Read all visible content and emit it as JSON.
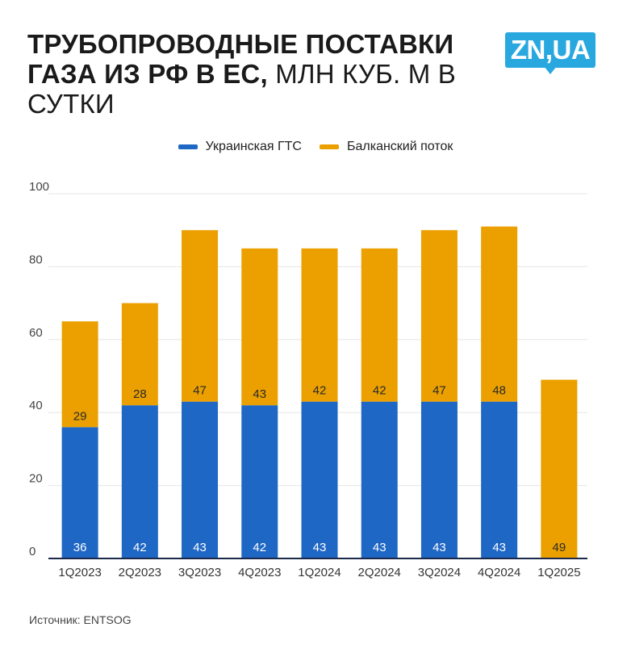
{
  "header": {
    "title_bold": "ТРУБОПРОВОДНЫЕ ПОСТАВКИ ГАЗА ИЗ РФ В ЕС,",
    "title_light": " МЛН КУБ. М В СУТКИ",
    "logo_text": "ZN,UA"
  },
  "colors": {
    "ukraine": "#1f67c4",
    "balkan": "#eba000",
    "grid": "#e6e6e6",
    "axis": "#1b2a4a",
    "logo": "#29a8e0"
  },
  "chart_data": {
    "type": "bar",
    "stacked": true,
    "categories": [
      "1Q2023",
      "2Q2023",
      "3Q2023",
      "4Q2023",
      "1Q2024",
      "2Q2024",
      "3Q2024",
      "4Q2024",
      "1Q2025"
    ],
    "series": [
      {
        "name": "Украинская ГТС",
        "values": [
          36,
          42,
          43,
          42,
          43,
          43,
          43,
          43,
          0
        ],
        "labels": [
          "36",
          "42",
          "43",
          "42",
          "43",
          "43",
          "43",
          "43",
          ""
        ]
      },
      {
        "name": "Балканский поток",
        "values": [
          29,
          28,
          47,
          43,
          42,
          42,
          47,
          48,
          49
        ],
        "labels": [
          "29",
          "28",
          "47",
          "43",
          "42",
          "42",
          "47",
          "48",
          "49"
        ]
      }
    ],
    "ylim": [
      0,
      100
    ],
    "yticks": [
      "0",
      "20",
      "40",
      "60",
      "80",
      "100"
    ],
    "grid": true,
    "legend": "top-center"
  },
  "footer": {
    "source": "Источник: ENTSOG"
  }
}
